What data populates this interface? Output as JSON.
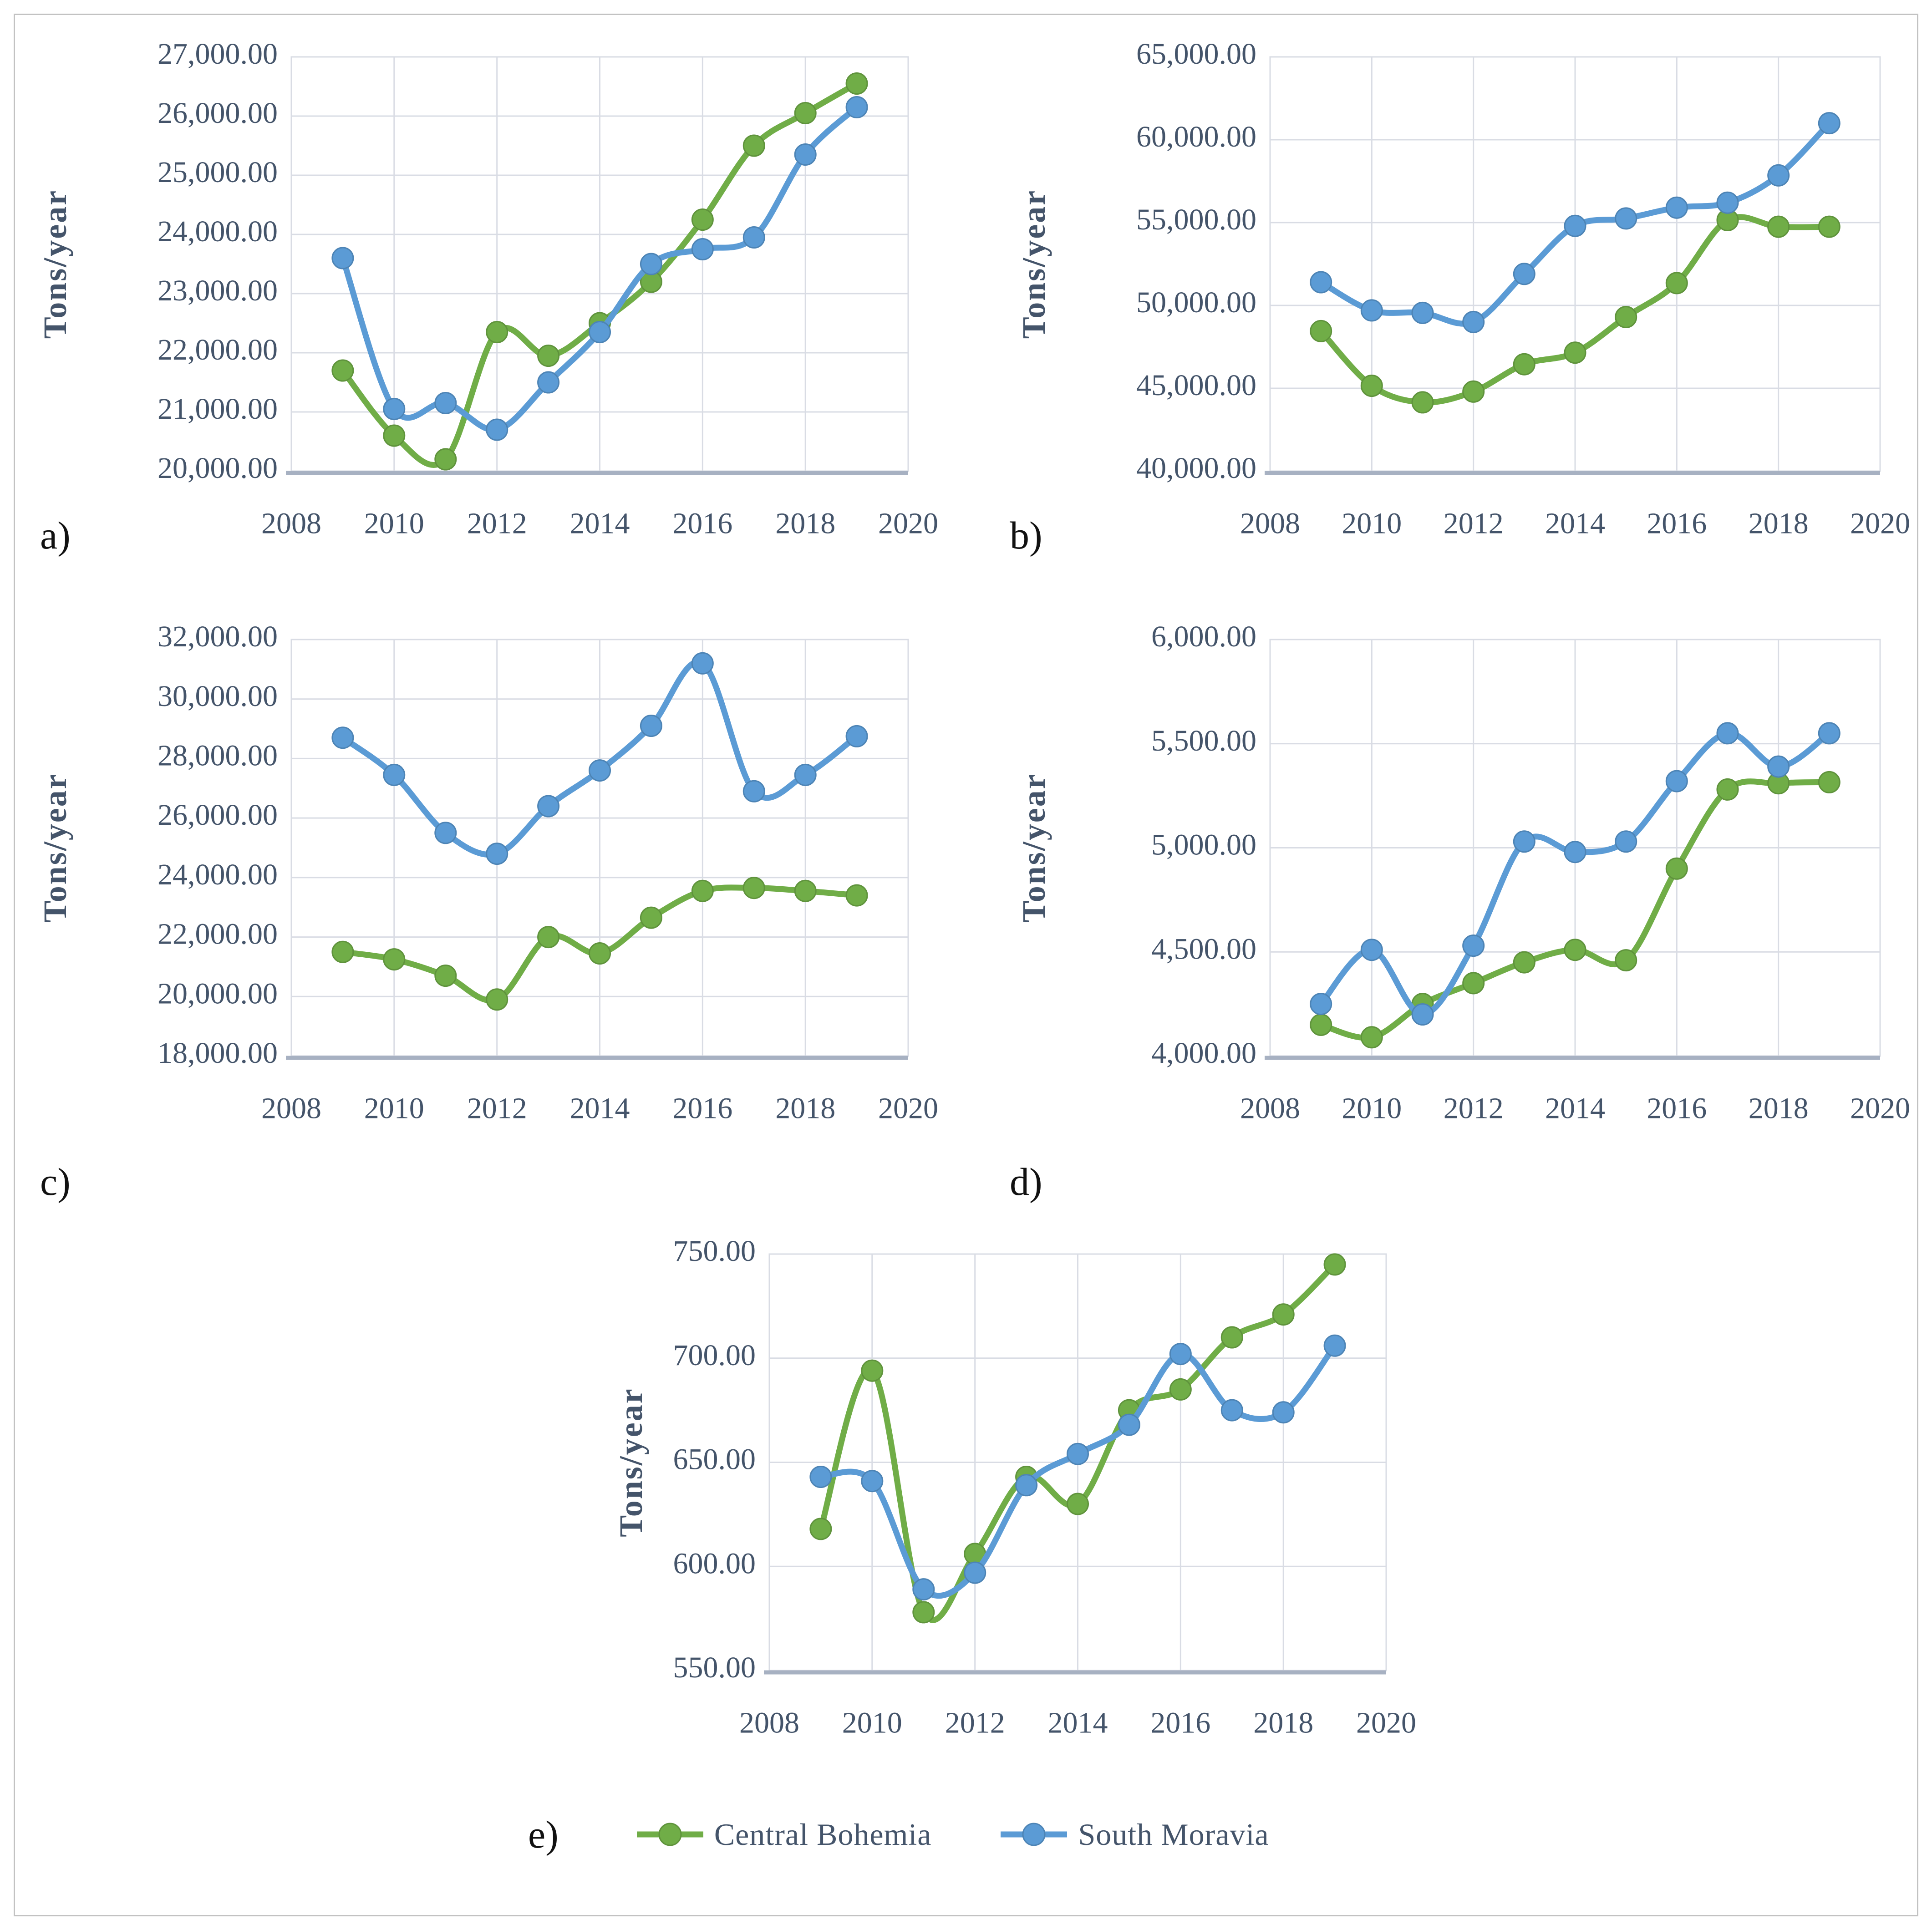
{
  "figure": {
    "background": "#ffffff",
    "border_color": "#c2c2c2"
  },
  "axis_style": {
    "tick_color": "#44546A",
    "grid_color": "#D9DCE4",
    "axis_line_color": "#A7B1C2",
    "panel_label_color": "#111111"
  },
  "legend": {
    "panel_label": "e)",
    "items": [
      {
        "label": "Central Bohemia",
        "color": "#70AD47",
        "icon": "line-with-circle-marker"
      },
      {
        "label": "South Moravia",
        "color": "#5B9BD5",
        "icon": "line-with-circle-marker"
      }
    ]
  },
  "chart_data": [
    {
      "id": "a",
      "panel_label": "a)",
      "type": "line",
      "title": "",
      "xlabel": "",
      "ylabel": "Tons/year",
      "x": [
        2009,
        2010,
        2011,
        2012,
        2013,
        2014,
        2015,
        2016,
        2017,
        2018,
        2019
      ],
      "xlim": [
        2008,
        2020
      ],
      "xticks": [
        2008,
        2010,
        2012,
        2014,
        2016,
        2018,
        2020
      ],
      "ylim": [
        20000,
        27000
      ],
      "ytick_step": 1000,
      "grid": true,
      "series": [
        {
          "name": "Central Bohemia",
          "color": "#70AD47",
          "values": [
            21700,
            20600,
            20200,
            22350,
            21950,
            22500,
            23200,
            24250,
            25500,
            26050,
            26550
          ]
        },
        {
          "name": "South Moravia",
          "color": "#5B9BD5",
          "values": [
            23600,
            21050,
            21150,
            20700,
            21500,
            22350,
            23500,
            23750,
            23950,
            25350,
            26150
          ]
        }
      ]
    },
    {
      "id": "b",
      "panel_label": "b)",
      "type": "line",
      "title": "",
      "xlabel": "",
      "ylabel": "Tons/year",
      "x": [
        2009,
        2010,
        2011,
        2012,
        2013,
        2014,
        2015,
        2016,
        2017,
        2018,
        2019
      ],
      "xlim": [
        2008,
        2020
      ],
      "xticks": [
        2008,
        2010,
        2012,
        2014,
        2016,
        2018,
        2020
      ],
      "ylim": [
        40000,
        65000
      ],
      "ytick_step": 5000,
      "grid": true,
      "series": [
        {
          "name": "Central Bohemia",
          "color": "#70AD47",
          "values": [
            48450,
            45150,
            44150,
            44800,
            46450,
            47150,
            49300,
            51350,
            55150,
            54750,
            54750
          ]
        },
        {
          "name": "South Moravia",
          "color": "#5B9BD5",
          "values": [
            51400,
            49700,
            49550,
            49000,
            51900,
            54800,
            55250,
            55900,
            56200,
            57850,
            61000
          ]
        }
      ]
    },
    {
      "id": "c",
      "panel_label": "c)",
      "type": "line",
      "title": "",
      "xlabel": "",
      "ylabel": "Tons/year",
      "x": [
        2009,
        2010,
        2011,
        2012,
        2013,
        2014,
        2015,
        2016,
        2017,
        2018,
        2019
      ],
      "xlim": [
        2008,
        2020
      ],
      "xticks": [
        2008,
        2010,
        2012,
        2014,
        2016,
        2018,
        2020
      ],
      "ylim": [
        18000,
        32000
      ],
      "ytick_step": 2000,
      "grid": true,
      "series": [
        {
          "name": "Central Bohemia",
          "color": "#70AD47",
          "values": [
            21500,
            21250,
            20700,
            19900,
            22000,
            21450,
            22650,
            23550,
            23650,
            23550,
            23400
          ]
        },
        {
          "name": "South Moravia",
          "color": "#5B9BD5",
          "values": [
            28700,
            27450,
            25500,
            24800,
            26400,
            27600,
            29100,
            31200,
            26900,
            27450,
            28750
          ]
        }
      ]
    },
    {
      "id": "d",
      "panel_label": "d)",
      "type": "line",
      "title": "",
      "xlabel": "",
      "ylabel": "Tons/year",
      "x": [
        2009,
        2010,
        2011,
        2012,
        2013,
        2014,
        2015,
        2016,
        2017,
        2018,
        2019
      ],
      "xlim": [
        2008,
        2020
      ],
      "xticks": [
        2008,
        2010,
        2012,
        2014,
        2016,
        2018,
        2020
      ],
      "ylim": [
        4000,
        6000
      ],
      "ytick_step": 500,
      "grid": true,
      "series": [
        {
          "name": "Central Bohemia",
          "color": "#70AD47",
          "values": [
            4150,
            4090,
            4250,
            4350,
            4450,
            4510,
            4460,
            4900,
            5280,
            5310,
            5315
          ]
        },
        {
          "name": "South Moravia",
          "color": "#5B9BD5",
          "values": [
            4250,
            4510,
            4200,
            4530,
            5030,
            4980,
            5030,
            5320,
            5550,
            5390,
            5550
          ]
        }
      ]
    },
    {
      "id": "e",
      "panel_label": "e)",
      "type": "line",
      "title": "",
      "xlabel": "",
      "ylabel": "Tons/year",
      "x": [
        2009,
        2010,
        2011,
        2012,
        2013,
        2014,
        2015,
        2016,
        2017,
        2018,
        2019
      ],
      "xlim": [
        2008,
        2020
      ],
      "xticks": [
        2008,
        2010,
        2012,
        2014,
        2016,
        2018,
        2020
      ],
      "ylim": [
        550,
        750
      ],
      "ytick_step": 50,
      "grid": true,
      "series": [
        {
          "name": "Central Bohemia",
          "color": "#70AD47",
          "values": [
            618,
            694,
            578,
            606,
            643,
            630,
            675,
            685,
            710,
            721,
            745
          ]
        },
        {
          "name": "South Moravia",
          "color": "#5B9BD5",
          "values": [
            643,
            641,
            589,
            597,
            639,
            654,
            668,
            702,
            675,
            674,
            706
          ]
        }
      ]
    }
  ]
}
